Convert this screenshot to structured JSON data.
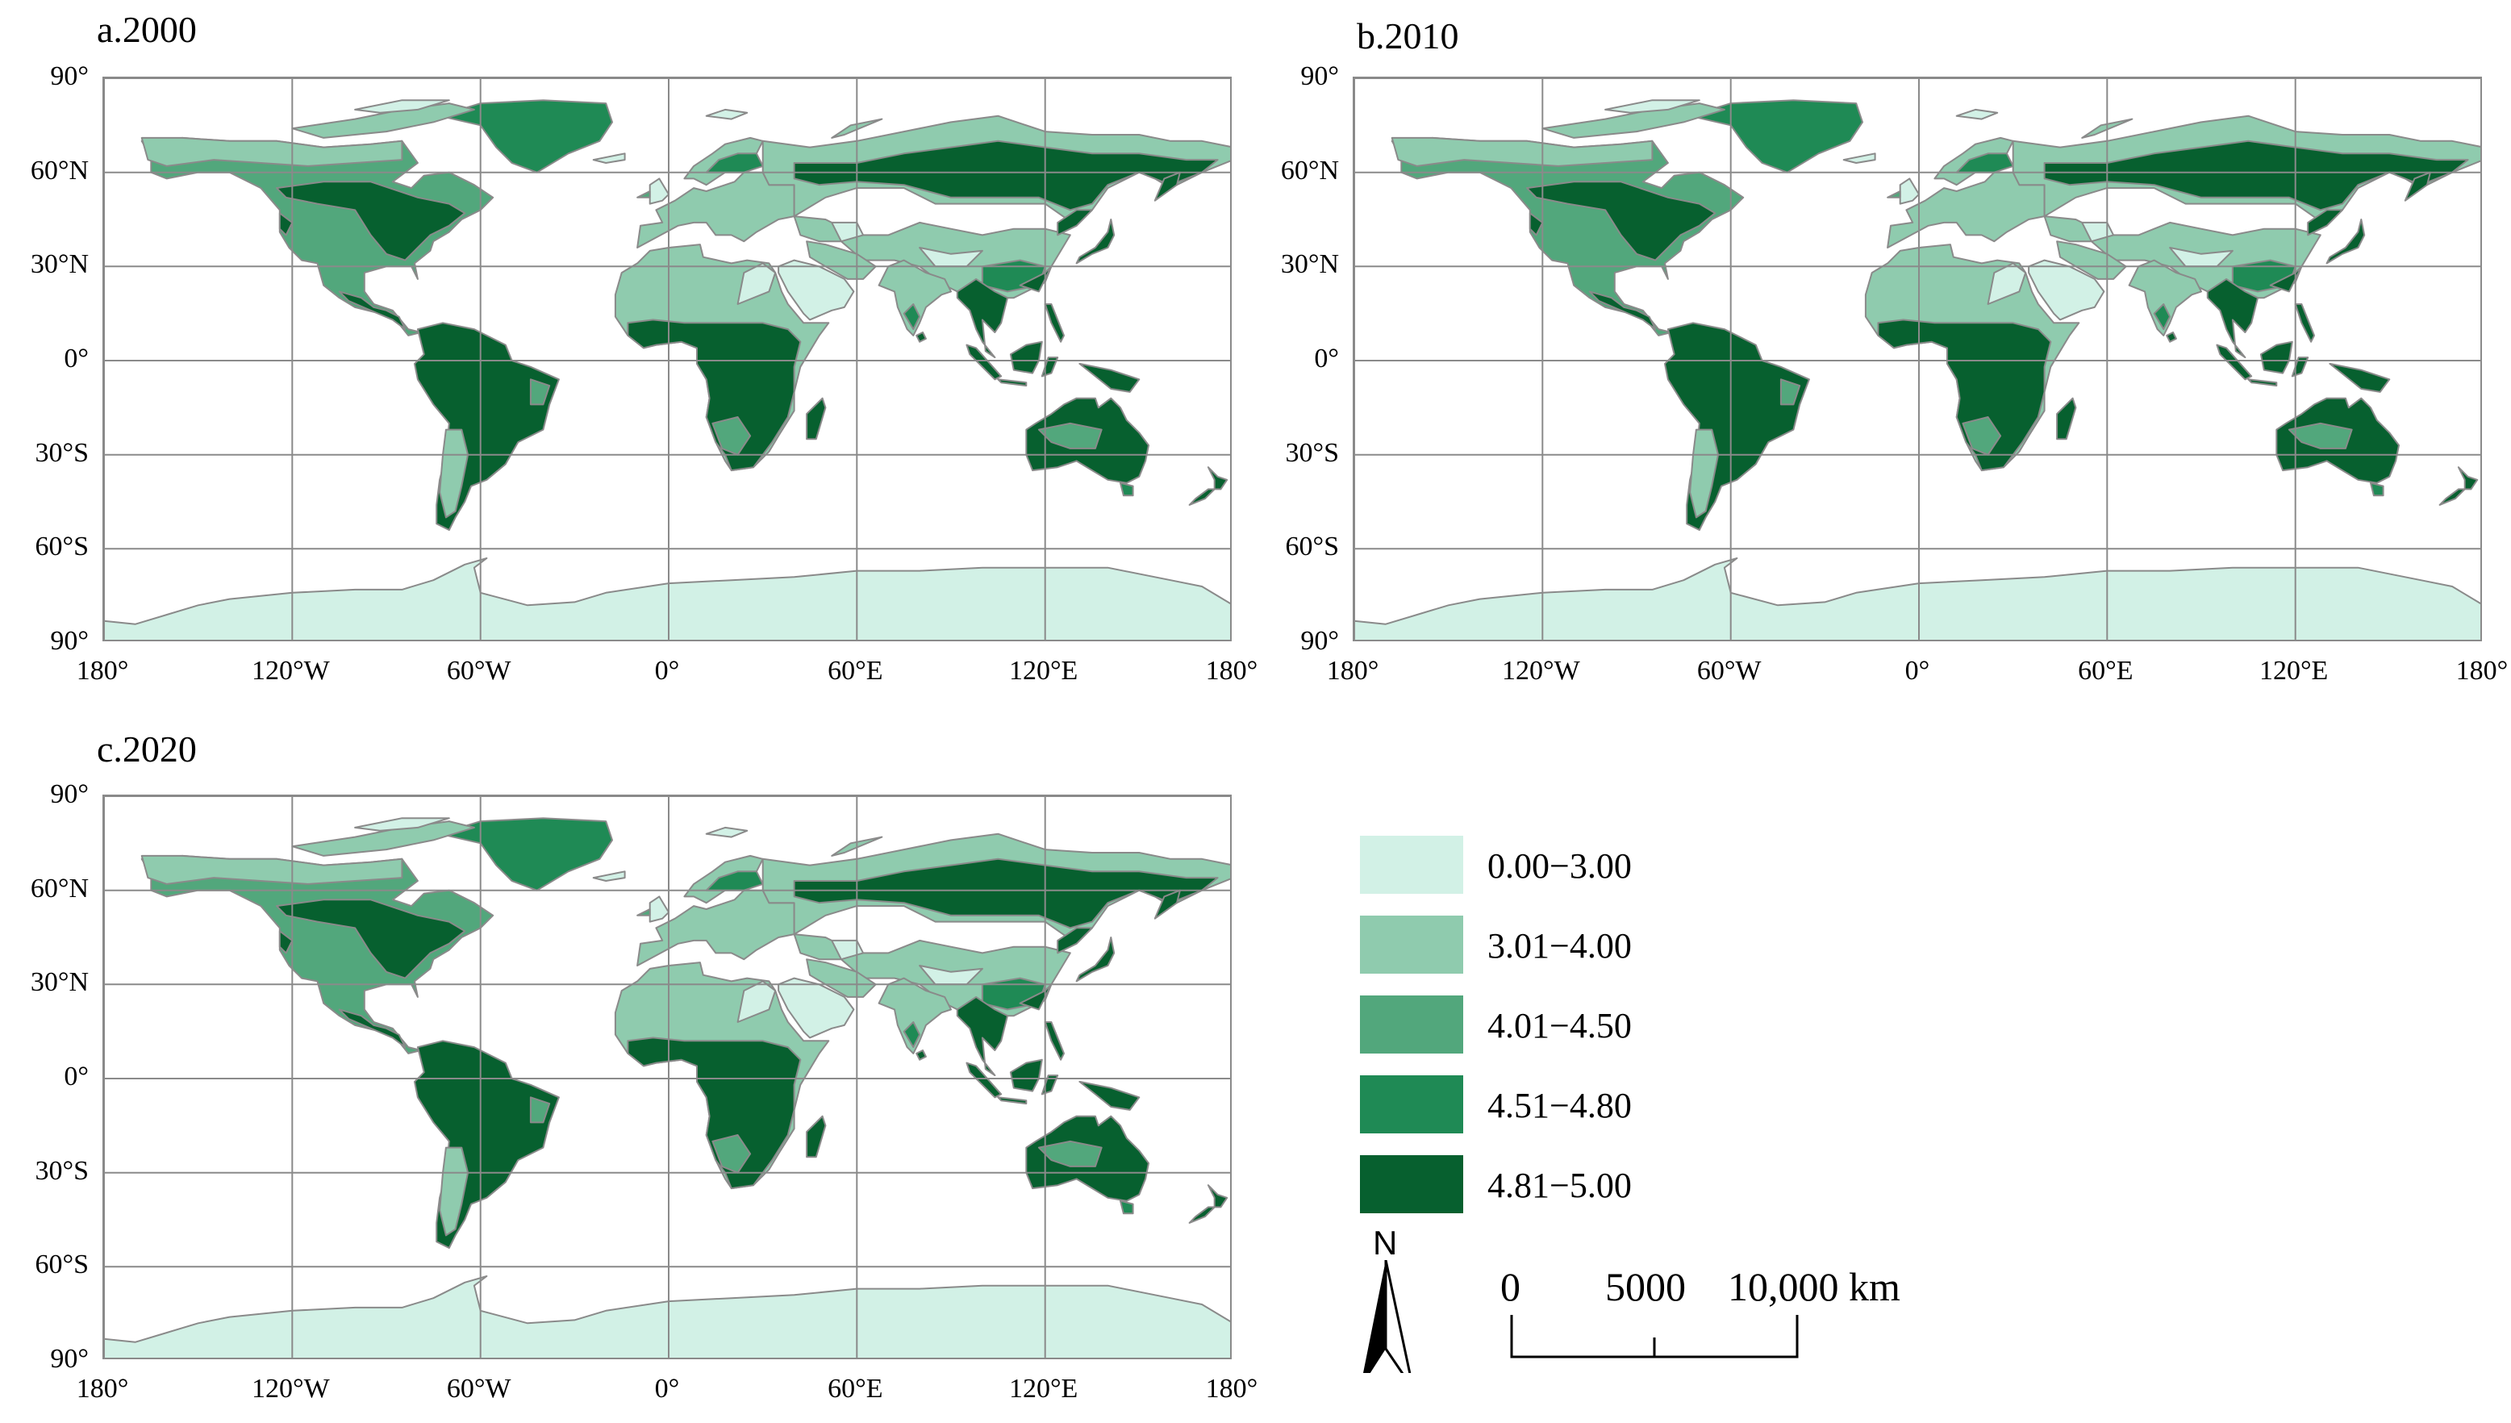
{
  "panels": [
    {
      "title": "a.2000"
    },
    {
      "title": "b.2010"
    },
    {
      "title": "c.2020"
    }
  ],
  "lat_labels": [
    "90°",
    "60°N",
    "30°N",
    "0°",
    "30°S",
    "60°S",
    "90°"
  ],
  "lon_labels": [
    "180°",
    "120°W",
    "60°W",
    "0°",
    "60°E",
    "120°E",
    "180°"
  ],
  "legend": [
    {
      "label": "0.00−3.00",
      "color": "#d2f1e6"
    },
    {
      "label": "3.01−4.00",
      "color": "#8fcbae"
    },
    {
      "label": "4.01−4.50",
      "color": "#52a77c"
    },
    {
      "label": "4.51−4.80",
      "color": "#1f8a55"
    },
    {
      "label": "4.81−5.00",
      "color": "#07602f"
    }
  ],
  "north_arrow": {
    "label": "N"
  },
  "scale_bar": {
    "labels": [
      "0",
      "5000",
      "10,000 km"
    ]
  },
  "colors": {
    "coast": "#8a8a8a",
    "grid": "#8a8a8a"
  }
}
